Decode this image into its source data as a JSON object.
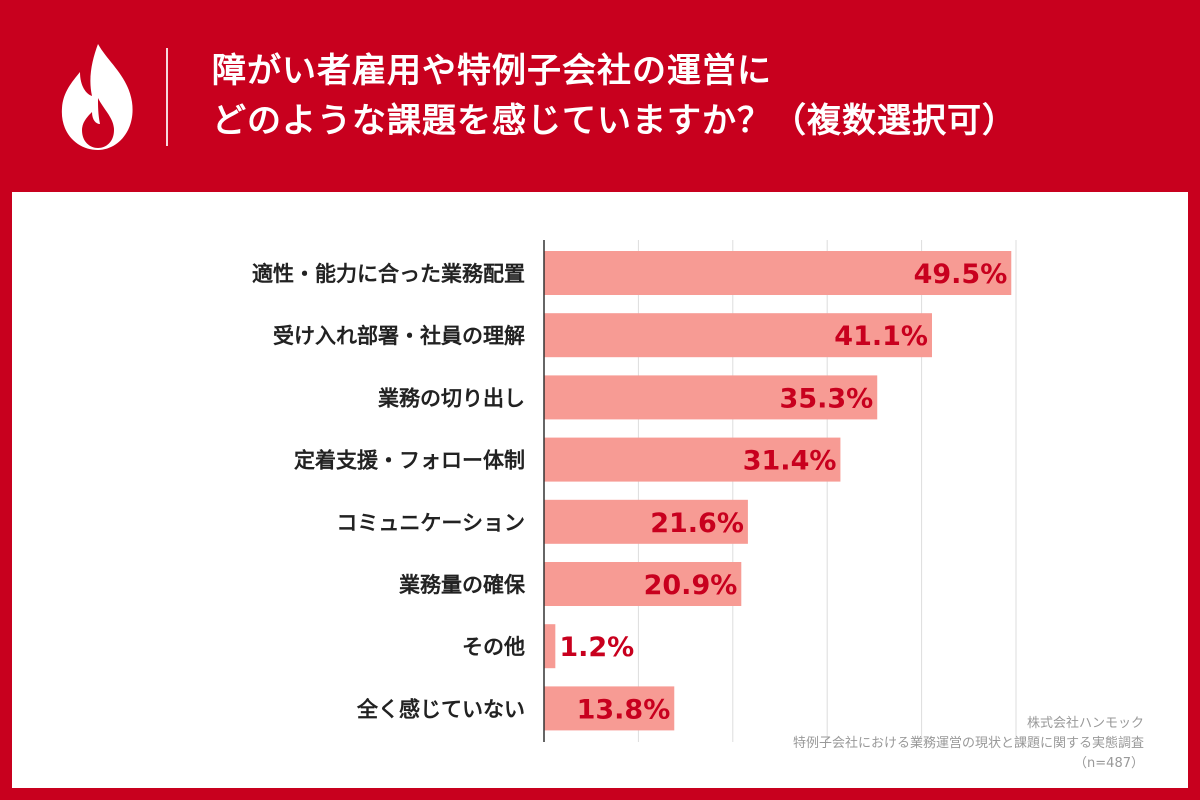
{
  "header": {
    "title_line1": "障がい者雇用や特例子会社の運営に",
    "title_line2": "どのような課題を感じていますか？（複数選択可）",
    "logo_icon": "flame-icon"
  },
  "colors": {
    "background": "#c8001e",
    "bar": "#f79b94",
    "value_label": "#c8001e",
    "category_label": "#222222",
    "gridline": "#dddddd"
  },
  "chart_data": {
    "type": "bar",
    "orientation": "horizontal",
    "categories": [
      "適性・能力に合った業務配置",
      "受け入れ部署・社員の理解",
      "業務の切り出し",
      "定着支援・フォロー体制",
      "コミュニケーション",
      "業務量の確保",
      "その他",
      "全く感じていない"
    ],
    "values": [
      49.5,
      41.1,
      35.3,
      31.4,
      21.6,
      20.9,
      1.2,
      13.8
    ],
    "value_labels": [
      "49.5%",
      "41.1%",
      "35.3%",
      "31.4%",
      "21.6%",
      "20.9%",
      "1.2%",
      "13.8%"
    ],
    "xlim": [
      0,
      50
    ],
    "grid": true
  },
  "footer": {
    "company": "株式会社ハンモック",
    "survey": "特例子会社における業務運営の現状と課題に関する実態調査",
    "sample": "（n=487）"
  }
}
